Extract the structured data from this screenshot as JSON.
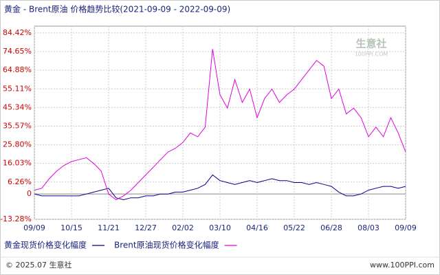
{
  "chart_data": {
    "type": "line",
    "title": "黄金 - Brent原油 价格趋势比较(2021-09-09 - 2022-09-09)",
    "watermark": "生意社",
    "watermark_url": "100PPI.COM",
    "footer_left": "© 2025.07 生意社",
    "footer_right": "www.100PPI.com",
    "categories": [
      "09/09",
      null,
      null,
      null,
      null,
      "10/15",
      null,
      null,
      null,
      null,
      "11/21",
      null,
      null,
      null,
      null,
      "12/27",
      null,
      null,
      null,
      null,
      "02/02",
      null,
      null,
      null,
      null,
      "03/10",
      null,
      null,
      null,
      null,
      "04/16",
      null,
      null,
      null,
      null,
      "05/22",
      null,
      null,
      null,
      null,
      "06/28",
      null,
      null,
      null,
      null,
      "08/03",
      null,
      null,
      null,
      null,
      "09/09"
    ],
    "series": [
      {
        "name": "黄金现货价格变化幅度",
        "color": "#00008b",
        "values": [
          0,
          -1,
          -1,
          -1,
          -1,
          -1,
          -1,
          0,
          1,
          2,
          3,
          -2,
          -3,
          -2,
          -2,
          -1,
          -1,
          0,
          0,
          1,
          1,
          2,
          3,
          5,
          10,
          7,
          6,
          5,
          6,
          7,
          6,
          7,
          8,
          7,
          7,
          6,
          6,
          5,
          6,
          5,
          4,
          1,
          -1,
          -1,
          0,
          2,
          3,
          4,
          4,
          3,
          4
        ]
      },
      {
        "name": "Brent原油现货价格变化幅度",
        "color": "#e000e0",
        "values": [
          2,
          3,
          8,
          12,
          15,
          17,
          18,
          19,
          16,
          12,
          0,
          -3,
          -1,
          2,
          6,
          10,
          14,
          18,
          22,
          24,
          27,
          32,
          30,
          35,
          76,
          52,
          45,
          60,
          48,
          55,
          40,
          50,
          55,
          48,
          52,
          55,
          60,
          65,
          70,
          67,
          50,
          55,
          42,
          45,
          40,
          30,
          35,
          30,
          40,
          32,
          22
        ]
      }
    ],
    "ylim": [
      -13.28,
      88
    ],
    "yticks": [
      {
        "value": 84.42,
        "label": "84.42%"
      },
      {
        "value": 74.65,
        "label": "74.65%"
      },
      {
        "value": 64.88,
        "label": "64.88%"
      },
      {
        "value": 55.11,
        "label": "55.11%"
      },
      {
        "value": 45.34,
        "label": "45.34%"
      },
      {
        "value": 35.57,
        "label": "35.57%"
      },
      {
        "value": 25.8,
        "label": "25.80%"
      },
      {
        "value": 16.03,
        "label": "16.03%"
      },
      {
        "value": 6.26,
        "label": "6.26%"
      },
      0,
      {
        "value": -13.28,
        "label": "-13.28%"
      }
    ],
    "grid": true
  }
}
